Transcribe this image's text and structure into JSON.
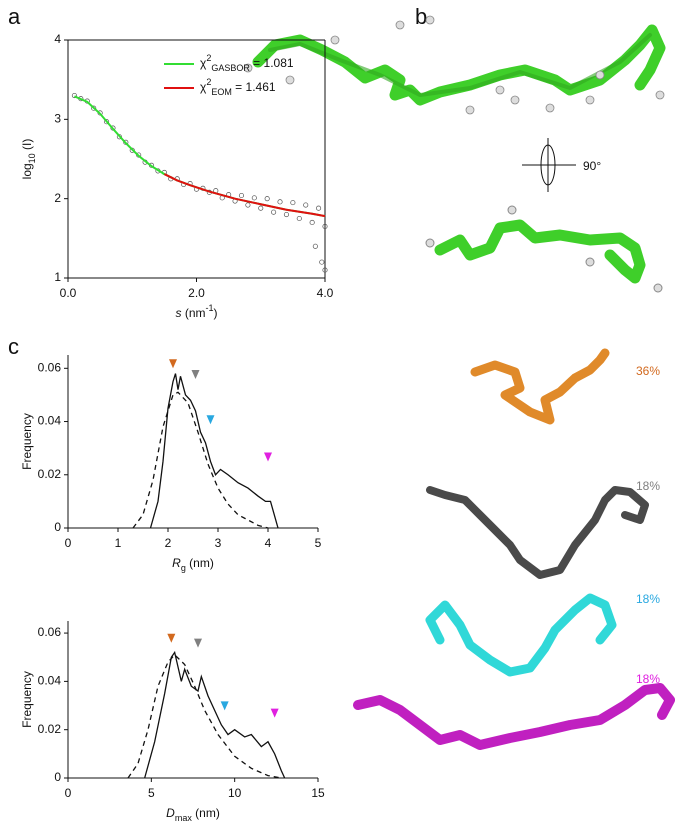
{
  "chart_data": [
    {
      "type": "scatter",
      "panel": "a",
      "ylabel": [
        "log",
        "10",
        " (I)"
      ],
      "xlabel": [
        "s",
        " (nm",
        "-1",
        ")"
      ],
      "xlim": [
        0,
        4
      ],
      "xticks": [
        {
          "value": 0,
          "label": "0.0"
        },
        {
          "value": 2,
          "label": "2.0"
        },
        {
          "value": 4,
          "label": "4.0"
        }
      ],
      "ylim": [
        1,
        4
      ],
      "yticks": [
        1,
        2,
        3,
        4
      ],
      "points": {
        "color": "#555555",
        "x": [
          0.1,
          0.2,
          0.3,
          0.4,
          0.5,
          0.6,
          0.7,
          0.8,
          0.9,
          1.0,
          1.1,
          1.2,
          1.3,
          1.4,
          1.5,
          1.6,
          1.7,
          1.8,
          1.9,
          2.0,
          2.1,
          2.2,
          2.3,
          2.4,
          2.5,
          2.6,
          2.7,
          2.8,
          2.9,
          3.0,
          3.1,
          3.2,
          3.3,
          3.4,
          3.5,
          3.6,
          3.7,
          3.8,
          3.9,
          4.0,
          3.85,
          3.95,
          4.0
        ],
        "values": [
          3.3,
          3.26,
          3.23,
          3.14,
          3.08,
          2.97,
          2.89,
          2.78,
          2.71,
          2.61,
          2.55,
          2.46,
          2.42,
          2.35,
          2.33,
          2.25,
          2.25,
          2.18,
          2.19,
          2.12,
          2.13,
          2.08,
          2.1,
          2.01,
          2.05,
          1.97,
          2.04,
          1.92,
          2.01,
          1.88,
          2.0,
          1.83,
          1.96,
          1.8,
          1.95,
          1.75,
          1.92,
          1.7,
          1.88,
          1.65,
          1.4,
          1.2,
          1.1
        ]
      },
      "series": [
        {
          "name": [
            "χ",
            "2",
            "GASBOR",
            " = 1.081"
          ],
          "color": "#33dd33",
          "x": [
            0.1,
            0.3,
            0.5,
            0.7,
            0.9,
            1.1,
            1.3,
            1.5,
            1.7,
            1.9,
            2.2,
            2.6,
            3.0,
            3.4,
            3.8,
            4.0
          ],
          "values": [
            3.29,
            3.22,
            3.07,
            2.88,
            2.7,
            2.54,
            2.41,
            2.31,
            2.23,
            2.17,
            2.09,
            2.0,
            1.93,
            1.86,
            1.81,
            1.78
          ]
        },
        {
          "name": [
            "χ",
            "2",
            "EOM",
            " = 1.461"
          ],
          "color": "#e01010",
          "x": [
            1.5,
            1.7,
            1.9,
            2.2,
            2.6,
            3.0,
            3.4,
            3.8,
            4.0
          ],
          "values": [
            2.31,
            2.23,
            2.17,
            2.09,
            2.0,
            1.93,
            1.86,
            1.81,
            1.78
          ]
        }
      ]
    },
    {
      "type": "line",
      "panel": "c",
      "ylabel": [
        "Frequency"
      ],
      "xlabel": [
        "R",
        "g",
        " (nm)"
      ],
      "xlim": [
        0,
        5
      ],
      "xticks": [
        0,
        1,
        2,
        3,
        4,
        5
      ],
      "ylim": [
        0,
        0.065
      ],
      "yticks": [
        0,
        0.02,
        0.04,
        0.06
      ],
      "series": [
        {
          "style": "solid",
          "color": "#111111",
          "x": [
            1.65,
            1.8,
            1.9,
            2.0,
            2.1,
            2.15,
            2.2,
            2.25,
            2.35,
            2.45,
            2.55,
            2.65,
            2.75,
            2.85,
            2.95,
            3.05,
            3.2,
            3.4,
            3.6,
            3.8,
            3.95,
            4.05,
            4.2
          ],
          "values": [
            0,
            0.01,
            0.025,
            0.045,
            0.055,
            0.058,
            0.052,
            0.057,
            0.05,
            0.048,
            0.044,
            0.036,
            0.032,
            0.025,
            0.02,
            0.022,
            0.02,
            0.017,
            0.015,
            0.012,
            0.01,
            0.01,
            0
          ]
        },
        {
          "style": "dashed",
          "color": "#111111",
          "x": [
            1.3,
            1.5,
            1.7,
            1.9,
            2.1,
            2.2,
            2.4,
            2.6,
            2.8,
            3.0,
            3.2,
            3.4,
            3.6,
            3.8,
            4.0
          ],
          "values": [
            0,
            0.005,
            0.018,
            0.038,
            0.05,
            0.051,
            0.047,
            0.036,
            0.024,
            0.015,
            0.009,
            0.005,
            0.003,
            0.001,
            0
          ]
        }
      ],
      "markers": [
        {
          "x": 2.1,
          "y": 0.06,
          "color": "#d2691e"
        },
        {
          "x": 2.55,
          "y": 0.056,
          "color": "#808080"
        },
        {
          "x": 2.85,
          "y": 0.039,
          "color": "#29a8e0"
        },
        {
          "x": 4.0,
          "y": 0.025,
          "color": "#e020e0"
        }
      ]
    },
    {
      "type": "line",
      "ylabel": [
        "Frequency"
      ],
      "xlabel": [
        "D",
        "max",
        " (nm)"
      ],
      "xlim": [
        0,
        15
      ],
      "xticks": [
        0,
        5,
        10,
        15
      ],
      "ylim": [
        0,
        0.065
      ],
      "yticks": [
        0,
        0.02,
        0.04,
        0.06
      ],
      "series": [
        {
          "style": "solid",
          "color": "#111111",
          "x": [
            4.6,
            5.2,
            5.8,
            6.2,
            6.4,
            6.8,
            7.0,
            7.4,
            7.8,
            8.0,
            8.4,
            8.8,
            9.2,
            9.6,
            10.0,
            10.6,
            11.0,
            11.6,
            12.0,
            12.4,
            12.8,
            13.0
          ],
          "values": [
            0,
            0.015,
            0.035,
            0.05,
            0.052,
            0.04,
            0.045,
            0.038,
            0.036,
            0.042,
            0.034,
            0.028,
            0.022,
            0.018,
            0.02,
            0.017,
            0.018,
            0.013,
            0.015,
            0.01,
            0.003,
            0
          ]
        },
        {
          "style": "dashed",
          "color": "#111111",
          "x": [
            3.6,
            4.2,
            4.8,
            5.4,
            6.0,
            6.4,
            7.0,
            7.6,
            8.2,
            9.0,
            10.0,
            11.0,
            12.0,
            12.8
          ],
          "values": [
            0,
            0.006,
            0.02,
            0.038,
            0.048,
            0.051,
            0.047,
            0.038,
            0.028,
            0.018,
            0.009,
            0.004,
            0.001,
            0
          ]
        }
      ],
      "markers": [
        {
          "x": 6.2,
          "y": 0.056,
          "color": "#d2691e"
        },
        {
          "x": 7.8,
          "y": 0.054,
          "color": "#808080"
        },
        {
          "x": 9.4,
          "y": 0.028,
          "color": "#29a8e0"
        },
        {
          "x": 12.4,
          "y": 0.025,
          "color": "#e020e0"
        }
      ]
    }
  ],
  "panel_b": {
    "label": "b",
    "rotation": "90°"
  },
  "ensembles": [
    {
      "label": "36%",
      "color": "#d2691e"
    },
    {
      "label": "18%",
      "color": "#808080"
    },
    {
      "label": "18%",
      "color": "#29a8e0"
    },
    {
      "label": "18%",
      "color": "#e020e0"
    }
  ]
}
